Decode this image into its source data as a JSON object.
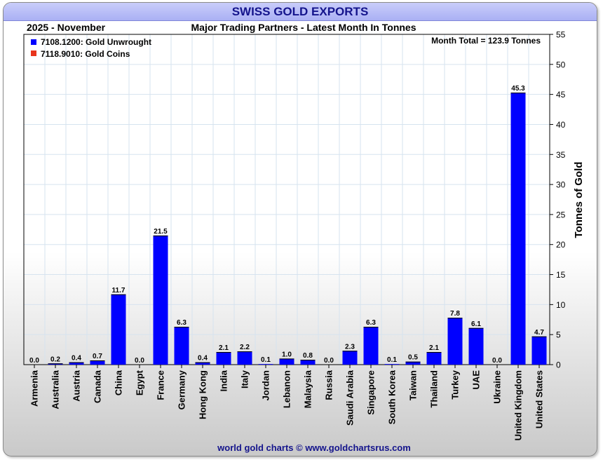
{
  "header": {
    "title": "SWISS GOLD EXPORTS"
  },
  "chart_data": {
    "type": "bar",
    "period": "2025 - November",
    "subtitle": "Major Trading Partners - Latest Month In Tonnes",
    "month_total": "Month Total = 123.9 Tonnes",
    "ylabel": "Tonnes of Gold",
    "ylim": [
      0,
      55
    ],
    "yticks": [
      0,
      5,
      10,
      15,
      20,
      25,
      30,
      35,
      40,
      45,
      50,
      55
    ],
    "grid": true,
    "legend_position": "top-left",
    "categories": [
      "Armenia",
      "Australia",
      "Austria",
      "Canada",
      "China",
      "Egypt",
      "France",
      "Germany",
      "Hong Kong",
      "India",
      "Italy",
      "Jordan",
      "Lebanon",
      "Malaysia",
      "Russia",
      "Saudi Arabia",
      "Singapore",
      "South Korea",
      "Taiwan",
      "Thailand",
      "Turkey",
      "UAE",
      "Ukraine",
      "United Kingdom",
      "United States"
    ],
    "series": [
      {
        "name": "7108.1200: Gold Unwrought",
        "color": "#0000ff",
        "values": [
          0.0,
          0.2,
          0.4,
          0.7,
          11.7,
          0.0,
          21.5,
          6.3,
          0.4,
          2.1,
          2.2,
          0.1,
          1.0,
          0.8,
          0.0,
          2.3,
          6.3,
          0.1,
          0.5,
          2.1,
          7.8,
          6.1,
          0.0,
          45.3,
          4.7
        ]
      },
      {
        "name": "7118.9010: Gold Coins",
        "color": "#e8341c",
        "values": [
          0,
          0,
          0,
          0,
          0,
          0,
          0,
          0,
          0,
          0,
          0,
          0,
          0,
          0,
          0,
          0,
          0,
          0,
          0,
          0,
          0,
          0,
          0,
          0,
          0
        ]
      }
    ],
    "data_labels": [
      "0.0",
      "0.2",
      "0.4",
      "0.7",
      "11.7",
      "0.0",
      "21.5",
      "6.3",
      "0.4",
      "2.1",
      "2.2",
      "0.1",
      "1.0",
      "0.8",
      "0.0",
      "2.3",
      "6.3",
      "0.1",
      "0.5",
      "2.1",
      "7.8",
      "6.1",
      "0.0",
      "45.3",
      "4.7"
    ]
  },
  "footer": {
    "credit": "world gold charts © www.goldchartsrus.com"
  }
}
